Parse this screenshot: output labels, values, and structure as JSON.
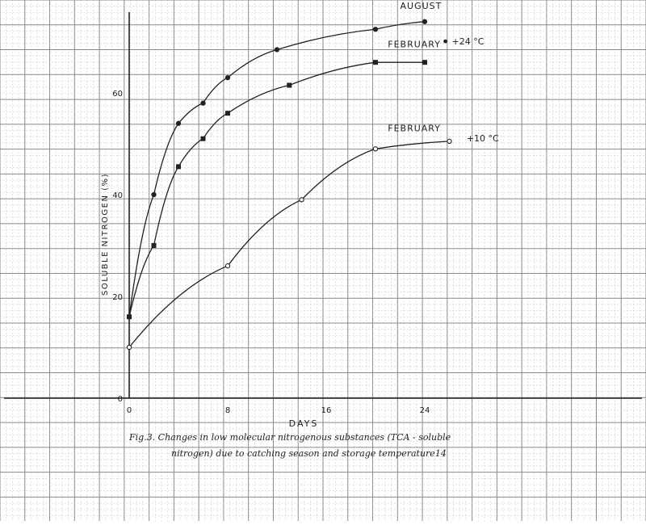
{
  "chart_data": {
    "type": "line",
    "title": "",
    "xlabel": "DAYS",
    "ylabel": "SOLUBLE NITROGEN (%)",
    "xlim": [
      0,
      28
    ],
    "ylim": [
      0,
      75
    ],
    "x_ticks": [
      "0",
      "8",
      "16",
      "24"
    ],
    "y_ticks": [
      "0",
      "20",
      "40",
      "60"
    ],
    "grid": true,
    "series": [
      {
        "name": "AUGUST",
        "x": [
          0,
          2,
          4,
          6,
          8,
          12,
          20,
          24
        ],
        "y": [
          16,
          40,
          54,
          58,
          63,
          68.5,
          72.5,
          74
        ]
      },
      {
        "name": "FEBRUARY",
        "x": [
          0,
          2,
          4,
          6,
          8,
          13,
          20,
          24
        ],
        "y": [
          16,
          30,
          45.5,
          51,
          56,
          61.5,
          66,
          66
        ]
      },
      {
        "name": "FEBRUARY",
        "x": [
          0,
          8,
          14,
          20,
          26
        ],
        "y": [
          10,
          26,
          39,
          49,
          50.5
        ]
      }
    ],
    "annotations": [
      {
        "text": "+24 °C"
      },
      {
        "text": "+10 °C"
      }
    ],
    "caption": "Fig.3. Changes in low molecular nitrogenous substances (TCA - soluble nitrogen) due to catching season and storage temperature14"
  }
}
